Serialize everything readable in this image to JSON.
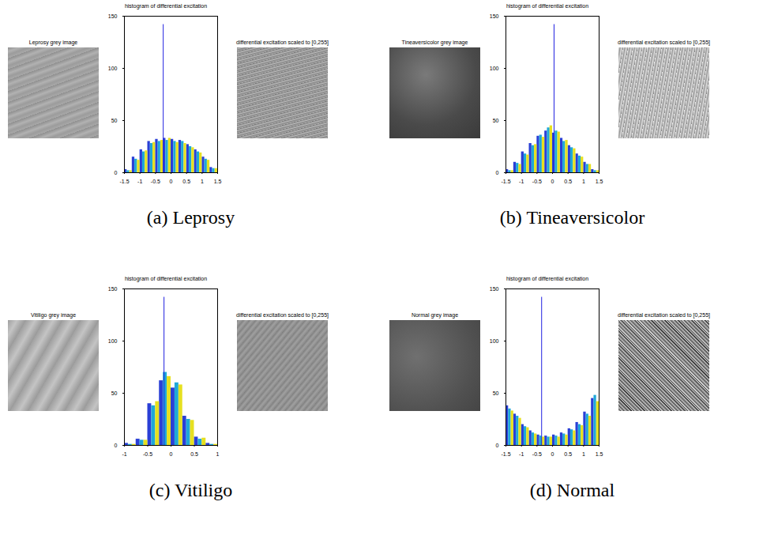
{
  "chart_data": [
    {
      "type": "histogram",
      "title": "histogram of differential excitation",
      "caption": "(a) Leprosy",
      "annotations": [
        "Leprosy grey image",
        "differential excitation scaled to [0,255]"
      ],
      "bins": [
        -1.5,
        -1.25,
        -1,
        -0.75,
        -0.5,
        -0.25,
        0,
        0.25,
        0.5,
        0.75,
        1,
        1.25,
        1.5
      ],
      "series": [
        {
          "color": "#2a3fd6",
          "values": [
            3,
            15,
            22,
            30,
            32,
            33,
            32,
            31,
            27,
            22,
            15,
            5
          ]
        },
        {
          "color": "#1fa8d8",
          "values": [
            2,
            13,
            20,
            28,
            30,
            31,
            30,
            30,
            25,
            20,
            13,
            4
          ]
        },
        {
          "color": "#e6e020",
          "values": [
            2,
            12,
            21,
            29,
            31,
            33,
            29,
            28,
            24,
            19,
            12,
            4
          ]
        }
      ],
      "spike": {
        "x": -0.25,
        "value": 142,
        "color": "#2020e0"
      },
      "xlim": [
        -1.5,
        1.5
      ],
      "xticks": [
        -1.5,
        -1,
        -0.5,
        0,
        0.5,
        1,
        1.5
      ],
      "ylim": [
        0,
        150
      ],
      "yticks": [
        0,
        50,
        100,
        150
      ]
    },
    {
      "type": "histogram",
      "title": "histogram of differential excitation",
      "caption": "(b) Tineaversicolor",
      "annotations": [
        "Tineaversicolor grey image",
        "differential excitation scaled to [0,255]"
      ],
      "bins": [
        -1.5,
        -1.25,
        -1,
        -0.75,
        -0.5,
        -0.25,
        0,
        0.25,
        0.5,
        0.75,
        1,
        1.25,
        1.5
      ],
      "series": [
        {
          "color": "#2a3fd6",
          "values": [
            3,
            10,
            20,
            28,
            35,
            40,
            38,
            33,
            26,
            18,
            10,
            3
          ]
        },
        {
          "color": "#1fa8d8",
          "values": [
            2,
            9,
            18,
            26,
            36,
            43,
            40,
            30,
            24,
            16,
            8,
            2
          ]
        },
        {
          "color": "#e6e020",
          "values": [
            2,
            8,
            17,
            27,
            34,
            45,
            39,
            31,
            23,
            15,
            8,
            2
          ]
        }
      ],
      "spike": {
        "x": 0.05,
        "value": 142,
        "color": "#2020e0"
      },
      "xlim": [
        -1.5,
        1.5
      ],
      "xticks": [
        -1.5,
        -1,
        -0.5,
        0,
        0.5,
        1,
        1.5
      ],
      "ylim": [
        0,
        150
      ],
      "yticks": [
        0,
        50,
        100,
        150
      ]
    },
    {
      "type": "histogram",
      "title": "histogram of differential excitation",
      "caption": "(c) Vitiligo",
      "annotations": [
        "Vitiligo grey image",
        "differential excitation scaled to [0,255]"
      ],
      "bins": [
        -1,
        -0.75,
        -0.5,
        -0.25,
        0,
        0.25,
        0.5,
        0.75,
        1
      ],
      "series": [
        {
          "color": "#2a3fd6",
          "values": [
            2,
            6,
            40,
            62,
            55,
            28,
            8,
            2
          ]
        },
        {
          "color": "#1fa8d8",
          "values": [
            1,
            5,
            38,
            70,
            60,
            25,
            6,
            1
          ]
        },
        {
          "color": "#e6e020",
          "values": [
            1,
            5,
            42,
            66,
            58,
            24,
            7,
            1
          ]
        }
      ],
      "spike": {
        "x": -0.15,
        "value": 142,
        "color": "#2020e0"
      },
      "xlim": [
        -1,
        1
      ],
      "xticks": [
        -1,
        -0.5,
        0,
        0.5,
        1
      ],
      "ylim": [
        0,
        150
      ],
      "yticks": [
        0,
        50,
        100,
        150
      ]
    },
    {
      "type": "histogram",
      "title": "histogram of differential excitation",
      "caption": "(d) Normal",
      "annotations": [
        "Normal grey image",
        "differential excitation scaled to [0,255]"
      ],
      "bins": [
        -1.5,
        -1.25,
        -1,
        -0.75,
        -0.5,
        -0.25,
        0,
        0.25,
        0.5,
        0.75,
        1,
        1.25,
        1.5
      ],
      "series": [
        {
          "color": "#2a3fd6",
          "values": [
            38,
            30,
            20,
            14,
            10,
            9,
            10,
            12,
            16,
            22,
            32,
            45
          ]
        },
        {
          "color": "#1fa8d8",
          "values": [
            35,
            28,
            18,
            12,
            9,
            8,
            9,
            11,
            15,
            20,
            30,
            48
          ]
        },
        {
          "color": "#e6e020",
          "values": [
            33,
            26,
            17,
            11,
            8,
            8,
            8,
            10,
            14,
            19,
            28,
            42
          ]
        }
      ],
      "spike": {
        "x": -0.35,
        "value": 142,
        "color": "#2020e0"
      },
      "xlim": [
        -1.5,
        1.5
      ],
      "xticks": [
        -1.5,
        -1,
        -0.5,
        0,
        0.5,
        1,
        1.5
      ],
      "ylim": [
        0,
        150
      ],
      "yticks": [
        0,
        50,
        100,
        150
      ]
    }
  ]
}
